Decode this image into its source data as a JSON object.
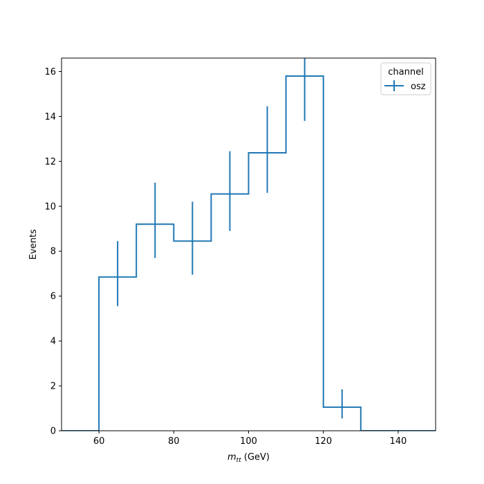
{
  "chart_data": {
    "type": "histogram-step",
    "xlabel_base": "m",
    "xlabel_sub": "tt",
    "xlabel_unit": " (GeV)",
    "ylabel": "Events",
    "xlim": [
      50,
      150
    ],
    "ylim": [
      0,
      16.6
    ],
    "xticks": [
      60,
      80,
      100,
      120,
      140
    ],
    "yticks": [
      0,
      2,
      4,
      6,
      8,
      10,
      12,
      14,
      16
    ],
    "grid": false,
    "legend": {
      "title": "channel",
      "placement": "top-right"
    },
    "series": [
      {
        "name": "osz",
        "color": "#1f77b4",
        "bin_edges": [
          50,
          60,
          70,
          80,
          90,
          100,
          110,
          120,
          130,
          140,
          150
        ],
        "values": [
          0,
          6.85,
          9.2,
          8.45,
          10.55,
          12.38,
          15.8,
          1.05,
          0,
          0
        ],
        "errors": [
          null,
          [
            5.55,
            8.45
          ],
          [
            7.7,
            11.05
          ],
          [
            6.95,
            10.2
          ],
          [
            8.9,
            12.45
          ],
          [
            10.6,
            14.45
          ],
          [
            13.8,
            16.65
          ],
          [
            0.55,
            1.85
          ],
          null,
          null
        ]
      }
    ]
  }
}
